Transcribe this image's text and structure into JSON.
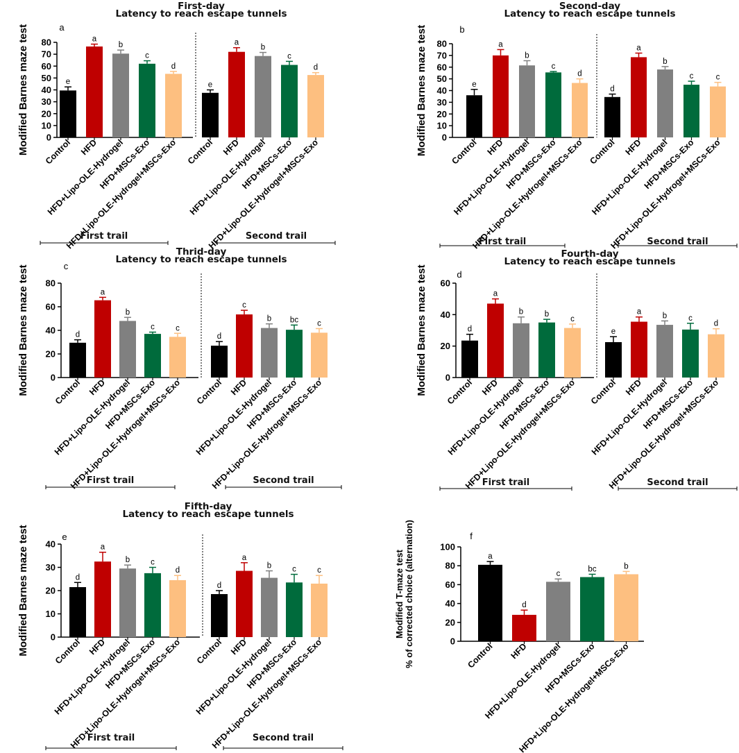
{
  "chart_data": [
    {
      "type": "bar",
      "panel_letter": "a",
      "title": "First-day",
      "subtitle": "Latency to reach escape tunnels",
      "ylabel": "Modified Barnes maze test",
      "ylim": [
        0,
        80
      ],
      "yticks": [
        0,
        10,
        20,
        30,
        40,
        50,
        60,
        70,
        80
      ],
      "categories": [
        "Control",
        "HFD",
        "HFD+Lipo-OLE-Hydrogel",
        "HFD+MSCs-Exo",
        "HFD+Lipo-OLE-Hydrogel+MSCs-Exo"
      ],
      "groups": [
        {
          "label": "First trail",
          "values": [
            39.5,
            76.5,
            70.5,
            62,
            53.5
          ],
          "errors": [
            3,
            2,
            3,
            2.5,
            2
          ],
          "letters": [
            "e",
            "a",
            "b",
            "c",
            "d"
          ]
        },
        {
          "label": "Second trail",
          "values": [
            37.5,
            72,
            68.5,
            61,
            52.5
          ],
          "errors": [
            2.5,
            3.5,
            3,
            3,
            2
          ],
          "letters": [
            "e",
            "a",
            "b",
            "c",
            "d"
          ]
        }
      ]
    },
    {
      "type": "bar",
      "panel_letter": "b",
      "title": "Second-day",
      "subtitle": "Latency to reach escape tunnels",
      "ylabel": "Modified Barnes maze test",
      "ylim": [
        0,
        80
      ],
      "yticks": [
        0,
        10,
        20,
        30,
        40,
        50,
        60,
        70,
        80
      ],
      "categories": [
        "Control",
        "HFD",
        "HFD+Lipo-OLE-Hydrogel",
        "HFD+MSCs-Exo",
        "HFD+Lipo-OLE-Hydrogel+MSCs-Exo"
      ],
      "groups": [
        {
          "label": "First trail",
          "values": [
            36,
            70,
            61.5,
            55.5,
            46.5
          ],
          "errors": [
            5,
            5,
            4,
            0.8,
            3.5
          ],
          "letters": [
            "e",
            "a",
            "b",
            "c",
            "d"
          ]
        },
        {
          "label": "Second trail",
          "values": [
            34.5,
            68.5,
            58,
            45,
            43.5
          ],
          "errors": [
            2.5,
            3.5,
            2.5,
            3,
            3.5
          ],
          "letters": [
            "d",
            "a",
            "b",
            "c",
            "c"
          ]
        }
      ]
    },
    {
      "type": "bar",
      "panel_letter": "c",
      "title": "Thrid-day",
      "subtitle": "Latency to reach escape tunnels",
      "ylabel": "Modified Barnes maze test",
      "ylim": [
        0,
        80
      ],
      "yticks": [
        0,
        20,
        40,
        60,
        80
      ],
      "categories": [
        "Control",
        "HFD",
        "HFD+Lipo-OLE-Hydrogel",
        "HFD+MSCs-Exo",
        "HFD+Lipo-OLE-Hydrogel+MSCs-Exo"
      ],
      "groups": [
        {
          "label": "First trail",
          "values": [
            29.5,
            65.5,
            48,
            37,
            34.5
          ],
          "errors": [
            2.5,
            2.5,
            3,
            1.5,
            3
          ],
          "letters": [
            "d",
            "a",
            "b",
            "c",
            "c"
          ]
        },
        {
          "label": "Second trail",
          "values": [
            27,
            53.5,
            42,
            40.5,
            38
          ],
          "errors": [
            3.5,
            3.5,
            3.5,
            4,
            3.5
          ],
          "letters": [
            "d",
            "c",
            "b",
            "bc",
            "c"
          ]
        }
      ]
    },
    {
      "type": "bar",
      "panel_letter": "d",
      "title": "Fourth-day",
      "subtitle": "Latency to reach escape tunnels",
      "ylabel": "Modified Barnes maze test",
      "ylim": [
        0,
        60
      ],
      "yticks": [
        0,
        20,
        40,
        60
      ],
      "categories": [
        "Control",
        "HFD",
        "HFD+Lipo-OLE-Hydrogel",
        "HFD+MSCs-Exo",
        "HFD+Lipo-OLE-Hydrogel+MSCs-Exo"
      ],
      "groups": [
        {
          "label": "First trail",
          "values": [
            23.5,
            47,
            34.5,
            35,
            31.5
          ],
          "errors": [
            4,
            3,
            4,
            2,
            2.5
          ],
          "letters": [
            "d",
            "a",
            "b",
            "b",
            "c"
          ]
        },
        {
          "label": "Second trail",
          "values": [
            22.5,
            35.5,
            33.5,
            30.5,
            27.5
          ],
          "errors": [
            3.5,
            3,
            2.5,
            4,
            3.5
          ],
          "letters": [
            "e",
            "a",
            "b",
            "c",
            "d"
          ]
        }
      ]
    },
    {
      "type": "bar",
      "panel_letter": "e",
      "title": "Fifth-day",
      "subtitle": "Latency to reach escape tunnels",
      "ylabel": "Modified Barnes maze test",
      "ylim": [
        0,
        40
      ],
      "yticks": [
        0,
        10,
        20,
        30,
        40
      ],
      "categories": [
        "Control",
        "HFD",
        "HFD+Lipo-OLE-Hydrogel",
        "HFD+MSCs-Exo",
        "HFD+Lipo-OLE-Hydrogel+MSCs-Exo"
      ],
      "groups": [
        {
          "label": "First trail",
          "values": [
            21.5,
            32.5,
            29.5,
            27.5,
            24.5
          ],
          "errors": [
            2,
            4,
            1.5,
            2.5,
            2
          ],
          "letters": [
            "d",
            "a",
            "b",
            "c",
            "d"
          ]
        },
        {
          "label": "Second trail",
          "values": [
            18.5,
            28.5,
            25.5,
            23.5,
            23
          ],
          "errors": [
            1.5,
            3.5,
            3,
            3.5,
            3.5
          ],
          "letters": [
            "d",
            "a",
            "b",
            "c",
            "c"
          ]
        }
      ]
    },
    {
      "type": "bar",
      "panel_letter": "f",
      "title": "",
      "subtitle": "",
      "ylabel": "Modified T-maze test",
      "ylabel2": "% of corrected choice (alternation)",
      "ylim": [
        0,
        100
      ],
      "yticks": [
        0,
        20,
        40,
        60,
        80,
        100
      ],
      "categories": [
        "Control",
        "HFD",
        "HFD+Lipo-OLE-Hydrogel",
        "HFD+MSCs-Exo",
        "HFD+Lipo-OLE-Hydrogel+MSCs-Exo"
      ],
      "groups": [
        {
          "label": "",
          "values": [
            81,
            28,
            63,
            68,
            71
          ],
          "errors": [
            3.5,
            5,
            3,
            3,
            3
          ],
          "letters": [
            "a",
            "d",
            "c",
            "bc",
            "b"
          ]
        }
      ]
    }
  ],
  "colors": {
    "series": [
      "#000000",
      "#bf0000",
      "#808080",
      "#006b3c",
      "#fdbf80"
    ]
  }
}
